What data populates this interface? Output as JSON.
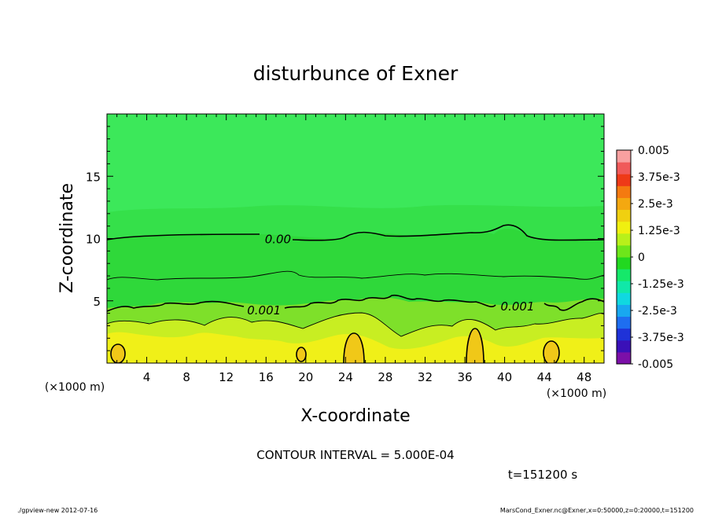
{
  "chart_data": {
    "type": "contour",
    "title": "disturbunce of Exner",
    "xlabel": "X-coordinate",
    "ylabel": "Z-coordinate",
    "x_unit_label": "(×1000 m)",
    "x_unit_label_right": "(×1000 m)",
    "xlim": [
      0,
      50
    ],
    "ylim": [
      0,
      20
    ],
    "x_ticks": [
      4,
      8,
      12,
      16,
      20,
      24,
      28,
      32,
      36,
      40,
      44,
      48
    ],
    "y_ticks": [
      5,
      10,
      15
    ],
    "contour_interval_text": "CONTOUR INTERVAL = 5.000E-04",
    "contour_labels": [
      {
        "text": "0.00",
        "x": 17.2,
        "z": 10.0
      },
      {
        "text": "0.001",
        "x": 15.8,
        "z": 4.3
      },
      {
        "text": "0.001",
        "x": 41.3,
        "z": 4.6
      }
    ],
    "colorbar": {
      "labels": [
        "0.005",
        "3.75e-3",
        "2.5e-3",
        "1.25e-3",
        "0",
        "-1.25e-3",
        "-2.5e-3",
        "-3.75e-3",
        "-0.005"
      ],
      "range": [
        -0.005,
        0.005
      ],
      "colors": [
        "#7b0fa8",
        "#3a10b8",
        "#1f32d8",
        "#1e6ef0",
        "#18a8f0",
        "#10d8e0",
        "#10e8a8",
        "#15e86a",
        "#22d820",
        "#6ee61a",
        "#b8f01a",
        "#f0f010",
        "#f0d010",
        "#f4a810",
        "#f47a10",
        "#ee3a18",
        "#f05a5a",
        "#f8a0a0"
      ]
    },
    "field_colors": {
      "upper": "#3ce85a",
      "mid_upper": "#35e04a",
      "mid": "#2fd83a",
      "lower_mid": "#7ee02a",
      "lower": "#c8ee22",
      "surface": "#f0f018",
      "cells": "#f0c818"
    }
  },
  "time_label": "t=151200 s",
  "footer": {
    "left": "./gpview-new  2012-07-16",
    "right": "MarsCond_Exner.nc@Exner,x=0:50000,z=0:20000,t=151200"
  }
}
